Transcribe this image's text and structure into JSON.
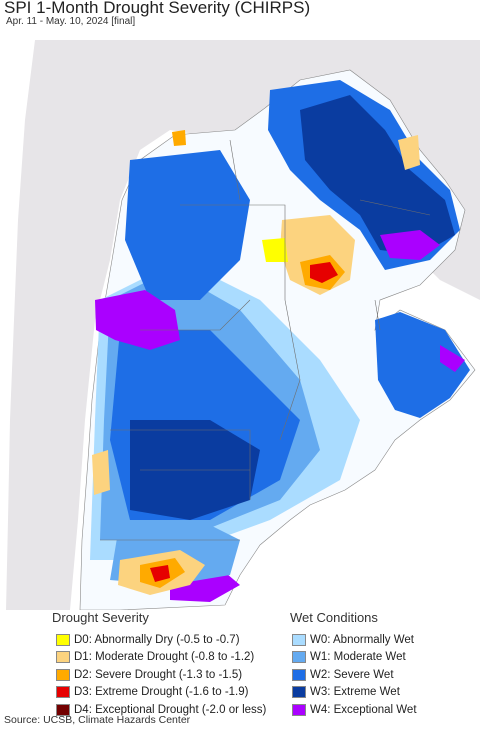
{
  "header": {
    "title": "SPI 1-Month Drought Severity (CHIRPS)",
    "subtitle": "Apr. 11 - May. 10, 2024 [final]"
  },
  "legend": {
    "drought": {
      "heading": "Drought Severity",
      "items": [
        {
          "label": "D0: Abnormally Dry (-0.5 to -0.7)",
          "color": "#ffff00"
        },
        {
          "label": "D1: Moderate Drought (-0.8 to -1.2)",
          "color": "#fcd37f"
        },
        {
          "label": "D2: Severe Drought (-1.3 to -1.5)",
          "color": "#ffaa00"
        },
        {
          "label": "D3: Extreme Drought (-1.6 to -1.9)",
          "color": "#e60000"
        },
        {
          "label": "D4: Exceptional Drought (-2.0 or less)",
          "color": "#730000"
        }
      ]
    },
    "wet": {
      "heading": "Wet Conditions",
      "items": [
        {
          "label": "W0: Abnormally Wet",
          "color": "#aadcff"
        },
        {
          "label": "W1: Moderate Wet",
          "color": "#64aaf0"
        },
        {
          "label": "W2: Severe Wet",
          "color": "#1e6ee6"
        },
        {
          "label": "W3: Extreme Wet",
          "color": "#0a3ca0"
        },
        {
          "label": "W4: Exceptional Wet",
          "color": "#aa00ff"
        }
      ]
    }
  },
  "footer": {
    "source": "Source: UCSB, Climate Hazards Center"
  }
}
